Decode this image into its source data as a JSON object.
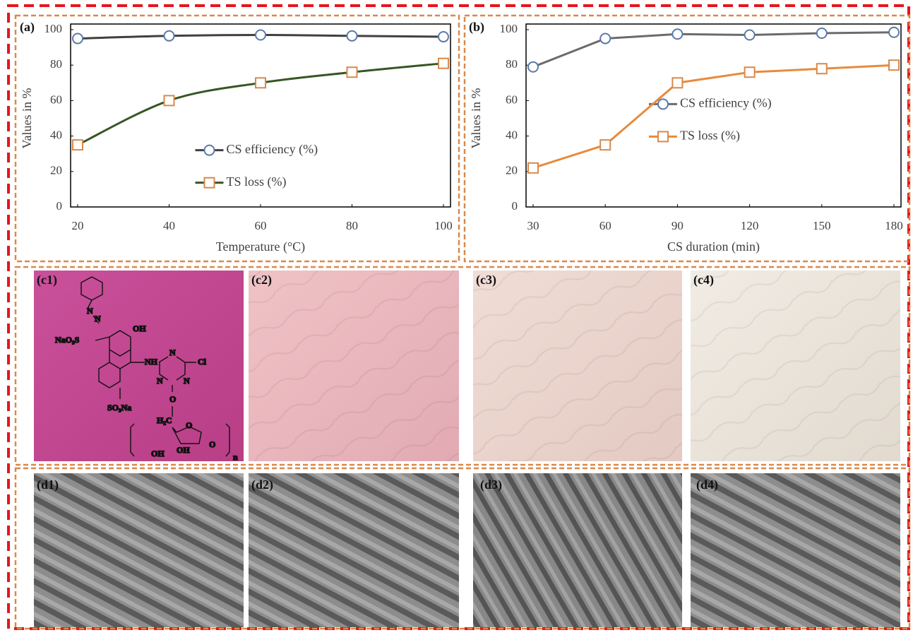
{
  "chart_data": [
    {
      "type": "line",
      "title": "(a)",
      "x_label": "Temperature (°C)",
      "y_label": "Values in %",
      "x": [
        20,
        40,
        60,
        80,
        100
      ],
      "xlim": [
        20,
        100
      ],
      "xticks": [
        20,
        40,
        60,
        80,
        100
      ],
      "ylim": [
        0,
        100
      ],
      "yticks": [
        0,
        20,
        40,
        60,
        80,
        100
      ],
      "grid": false,
      "smooth": true,
      "legend": "center",
      "series": [
        {
          "name": "CS efficiency (%)",
          "color": "#404040",
          "marker": "circle",
          "marker_color": "#5b7aa8",
          "values": [
            95,
            96.5,
            97,
            96.5,
            96
          ]
        },
        {
          "name": "TS loss (%)",
          "color": "#375623",
          "marker": "square",
          "marker_color": "#d9894a",
          "values": [
            35,
            60,
            70,
            76,
            81
          ]
        }
      ]
    },
    {
      "type": "line",
      "title": "(b)",
      "x_label": "CS duration (min)",
      "y_label": "Values in %",
      "x": [
        30,
        60,
        90,
        120,
        150,
        180
      ],
      "xlim": [
        30,
        180
      ],
      "xticks": [
        30,
        60,
        90,
        120,
        150,
        180
      ],
      "ylim": [
        0,
        100
      ],
      "yticks": [
        0,
        20,
        40,
        60,
        80,
        100
      ],
      "grid": false,
      "smooth": false,
      "legend": "right",
      "series": [
        {
          "name": "CS efficiency (%)",
          "color": "#6b6b6b",
          "marker": "circle",
          "marker_color": "#5b7aa8",
          "values": [
            79,
            95,
            97.5,
            97,
            98,
            98.5
          ]
        },
        {
          "name": "TS loss (%)",
          "color": "#e88a3c",
          "marker": "square",
          "marker_color": "#d9894a",
          "values": [
            22,
            35,
            70,
            76,
            78,
            80
          ]
        }
      ]
    }
  ],
  "photo_panels": [
    "(c1)",
    "(c2)",
    "(c3)",
    "(c4)"
  ],
  "sem_panels": [
    "(d1)",
    "(d2)",
    "(d3)",
    "(d4)"
  ],
  "structure": {
    "labels": [
      "N",
      "N",
      "OH",
      "NaO₃S",
      "NH",
      "N",
      "Cl",
      "N",
      "N",
      "SO₃Na",
      "O",
      "H₂C",
      "O",
      "O",
      "OH",
      "OH",
      "n"
    ]
  }
}
